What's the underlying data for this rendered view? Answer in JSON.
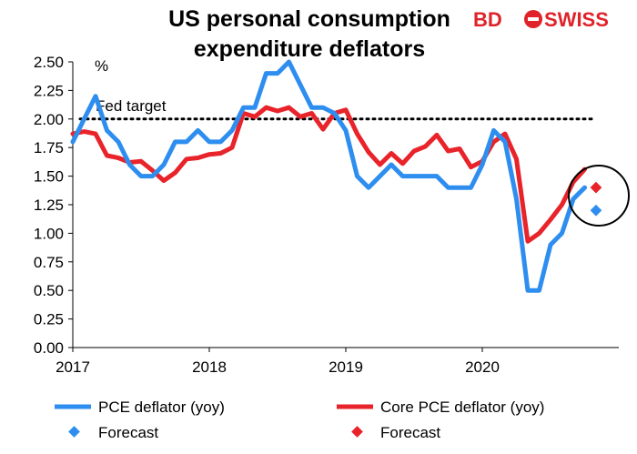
{
  "chart_data": {
    "type": "line",
    "title_line1": "US personal consumption",
    "title_line2": "expenditure deflators",
    "ylabel": "%",
    "ylim": [
      0,
      2.5
    ],
    "yticks": [
      "0.00",
      "0.25",
      "0.50",
      "0.75",
      "1.00",
      "1.25",
      "1.50",
      "1.75",
      "2.00",
      "2.25",
      "2.50"
    ],
    "xlim": [
      2017.0,
      2021.0
    ],
    "xticks": [
      {
        "value": 2017,
        "label": "2017"
      },
      {
        "value": 2018,
        "label": "2018"
      },
      {
        "value": 2019,
        "label": "2019"
      },
      {
        "value": 2020,
        "label": "2020"
      }
    ],
    "grid": false,
    "fed_target": {
      "value": 2.0,
      "label": "Fed target",
      "color": "#000000"
    },
    "series": [
      {
        "name": "PCE deflator (yoy)",
        "color": "#2e8ef0",
        "x": [
          2017.0,
          2017.083,
          2017.167,
          2017.25,
          2017.333,
          2017.417,
          2017.5,
          2017.583,
          2017.667,
          2017.75,
          2017.833,
          2017.917,
          2018.0,
          2018.083,
          2018.167,
          2018.25,
          2018.333,
          2018.417,
          2018.5,
          2018.583,
          2018.667,
          2018.75,
          2018.833,
          2018.917,
          2019.0,
          2019.083,
          2019.167,
          2019.25,
          2019.333,
          2019.417,
          2019.5,
          2019.583,
          2019.667,
          2019.75,
          2019.833,
          2019.917,
          2020.0,
          2020.083,
          2020.167,
          2020.25,
          2020.333,
          2020.417,
          2020.5,
          2020.583,
          2020.667,
          2020.75
        ],
        "values": [
          1.8,
          2.0,
          2.2,
          1.9,
          1.8,
          1.6,
          1.5,
          1.5,
          1.6,
          1.8,
          1.8,
          1.9,
          1.8,
          1.8,
          1.9,
          2.1,
          2.1,
          2.4,
          2.4,
          2.5,
          2.3,
          2.1,
          2.1,
          2.05,
          1.9,
          1.5,
          1.4,
          1.5,
          1.6,
          1.5,
          1.5,
          1.5,
          1.5,
          1.4,
          1.4,
          1.4,
          1.6,
          1.9,
          1.8,
          1.3,
          0.5,
          0.5,
          0.9,
          1.0,
          1.3,
          1.4
        ]
      },
      {
        "name": "Core PCE deflator (yoy)",
        "color": "#e8232a",
        "x": [
          2017.0,
          2017.083,
          2017.167,
          2017.25,
          2017.333,
          2017.417,
          2017.5,
          2017.583,
          2017.667,
          2017.75,
          2017.833,
          2017.917,
          2018.0,
          2018.083,
          2018.167,
          2018.25,
          2018.333,
          2018.417,
          2018.5,
          2018.583,
          2018.667,
          2018.75,
          2018.833,
          2018.917,
          2019.0,
          2019.083,
          2019.167,
          2019.25,
          2019.333,
          2019.417,
          2019.5,
          2019.583,
          2019.667,
          2019.75,
          2019.833,
          2019.917,
          2020.0,
          2020.083,
          2020.167,
          2020.25,
          2020.333,
          2020.417,
          2020.5,
          2020.583,
          2020.667,
          2020.75
        ],
        "values": [
          1.87,
          1.89,
          1.87,
          1.68,
          1.66,
          1.62,
          1.63,
          1.55,
          1.46,
          1.53,
          1.65,
          1.66,
          1.69,
          1.7,
          1.75,
          2.05,
          2.02,
          2.1,
          2.07,
          2.1,
          2.02,
          2.05,
          1.91,
          2.05,
          2.08,
          1.87,
          1.71,
          1.6,
          1.7,
          1.61,
          1.72,
          1.76,
          1.86,
          1.72,
          1.74,
          1.58,
          1.63,
          1.8,
          1.87,
          1.65,
          0.93,
          1.0,
          1.12,
          1.25,
          1.45,
          1.56
        ]
      }
    ],
    "forecasts": [
      {
        "name": "Forecast",
        "color": "#2e8ef0",
        "x": 2020.833,
        "value": 1.2
      },
      {
        "name": "Forecast",
        "color": "#e8232a",
        "x": 2020.833,
        "value": 1.4
      }
    ],
    "legend_position": "bottom"
  },
  "logo": {
    "part1": "BD",
    "part2": "SWISS"
  }
}
